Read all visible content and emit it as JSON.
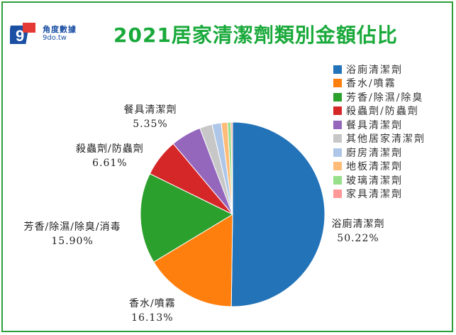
{
  "header": {
    "title": "2021居家清潔劑類別金額佔比",
    "logo_text_cn": "角度數據",
    "logo_text_en": "9do.tw",
    "logo_glyph": "9"
  },
  "colors": {
    "frame": "#2e9e3a",
    "title": "#19a93a",
    "logo": "#1a4fa3"
  },
  "chart_data": {
    "type": "pie",
    "title": "2021居家清潔劑類別金額佔比",
    "unit": "%",
    "start_angle_deg": 0,
    "direction": "clockwise",
    "legend_position": "right",
    "slices": [
      {
        "label": "浴廁清潔劑",
        "legend_label": "浴廁清潔劑",
        "value": 50.22,
        "value_text": "50.22%",
        "color": "#2273b8"
      },
      {
        "label": "香水/噴霧",
        "legend_label": "香水/噴霧",
        "value": 16.13,
        "value_text": "16.13%",
        "color": "#ff7f0e"
      },
      {
        "label": "芳香/除濕/除臭/消毒",
        "legend_label": "芳香/除濕/除臭",
        "value": 15.9,
        "value_text": "15.90%",
        "color": "#2ca02c"
      },
      {
        "label": "殺蟲劑/防蟲劑",
        "legend_label": "殺蟲劑/防蟲劑",
        "value": 6.61,
        "value_text": "6.61%",
        "color": "#d62728"
      },
      {
        "label": "餐具清潔劑",
        "legend_label": "餐具清潔劑",
        "value": 5.35,
        "value_text": "5.35%",
        "color": "#9467bd"
      },
      {
        "label": "",
        "legend_label": "其他居家清潔劑",
        "value": 2.2,
        "value_text": "",
        "color": "#c7c7c7"
      },
      {
        "label": "",
        "legend_label": "廚房清潔劑",
        "value": 1.6,
        "value_text": "",
        "color": "#aec7e8"
      },
      {
        "label": "",
        "legend_label": "地板清潔劑",
        "value": 1.1,
        "value_text": "",
        "color": "#ffbb78"
      },
      {
        "label": "",
        "legend_label": "玻璃清潔劑",
        "value": 0.6,
        "value_text": "",
        "color": "#98df8a"
      },
      {
        "label": "",
        "legend_label": "家具清潔劑",
        "value": 0.28,
        "value_text": "",
        "color": "#ff9896"
      }
    ]
  }
}
